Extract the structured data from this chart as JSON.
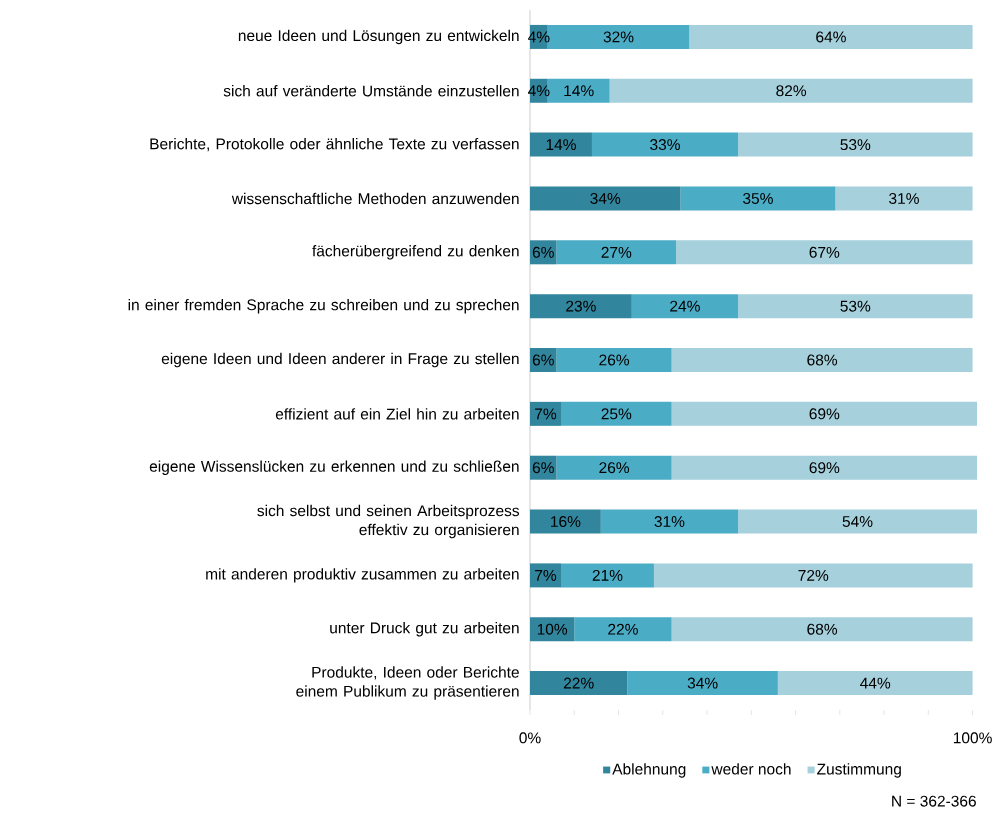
{
  "chart_data": {
    "type": "bar",
    "orientation": "horizontal",
    "stacked": true,
    "categories": [
      "neue Ideen und Lösungen zu entwickeln",
      "sich auf veränderte Umstände einzustellen",
      "Berichte, Protokolle oder ähnliche Texte zu verfassen",
      "wissenschaftliche Methoden anzuwenden",
      "fächerübergreifend zu denken",
      "in einer fremden Sprache zu schreiben und zu sprechen",
      "eigene Ideen und Ideen anderer in Frage zu stellen",
      "effizient auf ein Ziel hin zu arbeiten",
      "eigene Wissenslücken zu erkennen und zu schließen",
      "sich selbst und seinen Arbeitsprozess effektiv zu organisieren",
      "mit anderen produktiv zusammen zu arbeiten",
      "unter Druck gut zu arbeiten",
      "Produkte, Ideen oder Berichte einem Publikum zu präsentieren"
    ],
    "series": [
      {
        "name": "Ablehnung",
        "color": "#31859c",
        "values": [
          4,
          4,
          14,
          34,
          6,
          23,
          6,
          7,
          6,
          16,
          7,
          10,
          22
        ],
        "value_labels": [
          "4%",
          "4%",
          "14%",
          "34%",
          "6%",
          "23%",
          "6%",
          "7%",
          "6%",
          "16%",
          "7%",
          "10%",
          "22%"
        ]
      },
      {
        "name": "weder noch",
        "color": "#4bacc6",
        "values": [
          32,
          14,
          33,
          35,
          27,
          24,
          26,
          25,
          26,
          31,
          21,
          22,
          34
        ],
        "value_labels": [
          "32%",
          "14%",
          "33%",
          "35%",
          "27%",
          "24%",
          "26%",
          "25%",
          "26%",
          "31%",
          "21%",
          "22%",
          "34%"
        ]
      },
      {
        "name": "Zustimmung",
        "color": "#a5d0dc",
        "values": [
          64,
          82,
          53,
          31,
          67,
          53,
          68,
          69,
          69,
          54,
          72,
          68,
          44
        ],
        "value_labels": [
          "64%",
          "82%",
          "53%",
          "31%",
          "67%",
          "53%",
          "68%",
          "69%",
          "69%",
          "54%",
          "72%",
          "68%",
          "44%"
        ]
      }
    ],
    "xlim": [
      0,
      101
    ],
    "xticks": [
      {
        "value": 0,
        "label": "0%"
      },
      {
        "value": 10,
        "label": null
      },
      {
        "value": 20,
        "label": null
      },
      {
        "value": 30,
        "label": null
      },
      {
        "value": 40,
        "label": null
      },
      {
        "value": 50,
        "label": null
      },
      {
        "value": 60,
        "label": null
      },
      {
        "value": 70,
        "label": null
      },
      {
        "value": 80,
        "label": null
      },
      {
        "value": 90,
        "label": null
      },
      {
        "value": 100,
        "label": "100%"
      }
    ],
    "legend": "bottom",
    "annotations": [
      "N = 362-366"
    ]
  }
}
